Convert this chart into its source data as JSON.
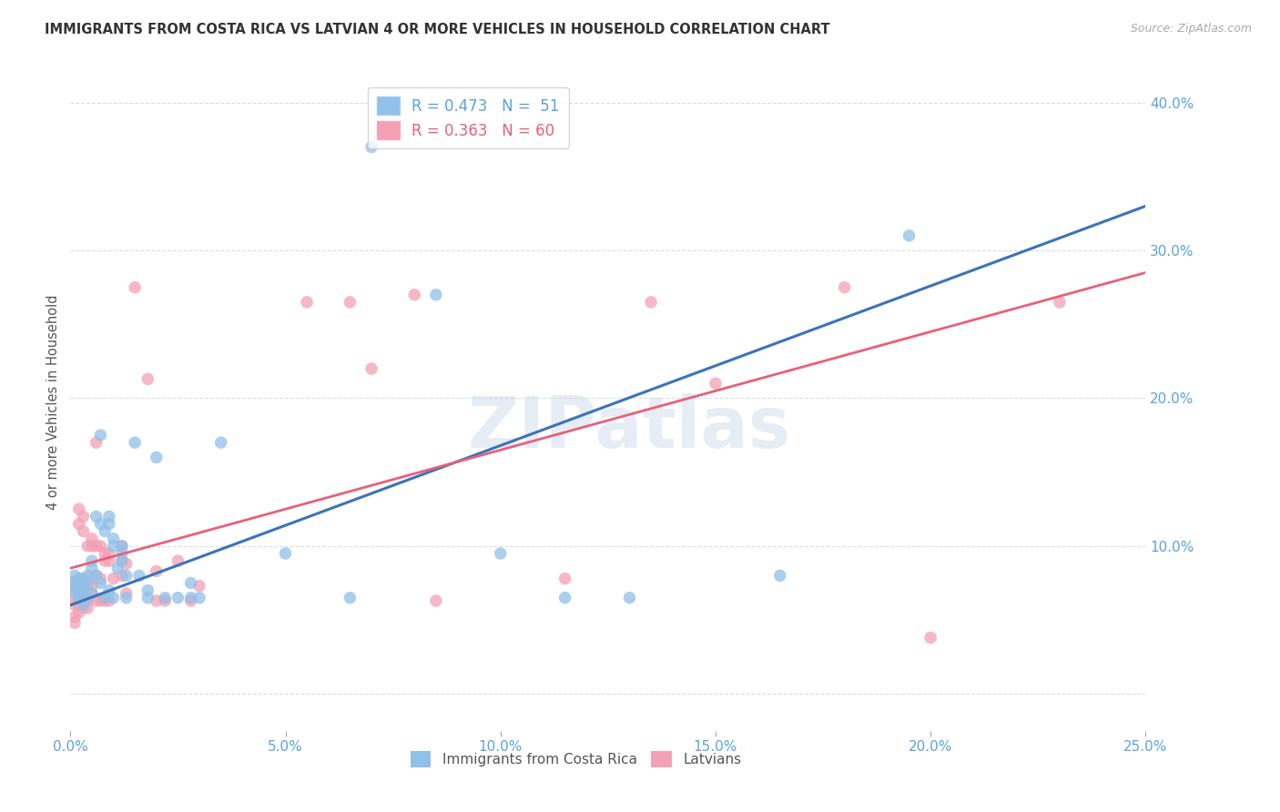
{
  "title": "IMMIGRANTS FROM COSTA RICA VS LATVIAN 4 OR MORE VEHICLES IN HOUSEHOLD CORRELATION CHART",
  "source": "Source: ZipAtlas.com",
  "ylabel": "4 or more Vehicles in Household",
  "watermark": "ZIPatlas",
  "xlim": [
    0.0,
    0.25
  ],
  "ylim": [
    -0.025,
    0.42
  ],
  "x_tick_vals": [
    0.0,
    0.05,
    0.1,
    0.15,
    0.2,
    0.25
  ],
  "x_tick_labels": [
    "0.0%",
    "5.0%",
    "10.0%",
    "15.0%",
    "20.0%",
    "25.0%"
  ],
  "y_tick_vals": [
    0.0,
    0.1,
    0.2,
    0.3,
    0.4
  ],
  "y_tick_labels": [
    "",
    "10.0%",
    "20.0%",
    "30.0%",
    "40.0%"
  ],
  "blue_scatter": [
    [
      0.001,
      0.072
    ],
    [
      0.001,
      0.076
    ],
    [
      0.001,
      0.08
    ],
    [
      0.001,
      0.068
    ],
    [
      0.002,
      0.065
    ],
    [
      0.002,
      0.07
    ],
    [
      0.002,
      0.074
    ],
    [
      0.002,
      0.078
    ],
    [
      0.003,
      0.06
    ],
    [
      0.003,
      0.067
    ],
    [
      0.003,
      0.072
    ],
    [
      0.003,
      0.077
    ],
    [
      0.004,
      0.065
    ],
    [
      0.004,
      0.075
    ],
    [
      0.004,
      0.08
    ],
    [
      0.005,
      0.068
    ],
    [
      0.005,
      0.085
    ],
    [
      0.005,
      0.09
    ],
    [
      0.006,
      0.08
    ],
    [
      0.006,
      0.12
    ],
    [
      0.007,
      0.075
    ],
    [
      0.007,
      0.115
    ],
    [
      0.007,
      0.175
    ],
    [
      0.008,
      0.065
    ],
    [
      0.008,
      0.11
    ],
    [
      0.009,
      0.07
    ],
    [
      0.009,
      0.115
    ],
    [
      0.009,
      0.12
    ],
    [
      0.01,
      0.065
    ],
    [
      0.01,
      0.1
    ],
    [
      0.01,
      0.105
    ],
    [
      0.011,
      0.085
    ],
    [
      0.012,
      0.09
    ],
    [
      0.012,
      0.095
    ],
    [
      0.012,
      0.1
    ],
    [
      0.013,
      0.065
    ],
    [
      0.013,
      0.08
    ],
    [
      0.015,
      0.17
    ],
    [
      0.016,
      0.08
    ],
    [
      0.018,
      0.065
    ],
    [
      0.018,
      0.07
    ],
    [
      0.02,
      0.16
    ],
    [
      0.022,
      0.065
    ],
    [
      0.025,
      0.065
    ],
    [
      0.028,
      0.065
    ],
    [
      0.028,
      0.075
    ],
    [
      0.03,
      0.065
    ],
    [
      0.035,
      0.17
    ],
    [
      0.05,
      0.095
    ],
    [
      0.065,
      0.065
    ],
    [
      0.07,
      0.37
    ],
    [
      0.085,
      0.27
    ],
    [
      0.1,
      0.095
    ],
    [
      0.115,
      0.065
    ],
    [
      0.13,
      0.065
    ],
    [
      0.165,
      0.08
    ],
    [
      0.195,
      0.31
    ]
  ],
  "pink_scatter": [
    [
      0.001,
      0.06
    ],
    [
      0.001,
      0.065
    ],
    [
      0.001,
      0.07
    ],
    [
      0.001,
      0.075
    ],
    [
      0.001,
      0.048
    ],
    [
      0.001,
      0.052
    ],
    [
      0.002,
      0.055
    ],
    [
      0.002,
      0.06
    ],
    [
      0.002,
      0.068
    ],
    [
      0.002,
      0.072
    ],
    [
      0.002,
      0.115
    ],
    [
      0.002,
      0.125
    ],
    [
      0.003,
      0.058
    ],
    [
      0.003,
      0.063
    ],
    [
      0.003,
      0.068
    ],
    [
      0.003,
      0.073
    ],
    [
      0.003,
      0.078
    ],
    [
      0.003,
      0.11
    ],
    [
      0.003,
      0.12
    ],
    [
      0.004,
      0.058
    ],
    [
      0.004,
      0.063
    ],
    [
      0.004,
      0.078
    ],
    [
      0.004,
      0.1
    ],
    [
      0.005,
      0.068
    ],
    [
      0.005,
      0.073
    ],
    [
      0.005,
      0.1
    ],
    [
      0.005,
      0.105
    ],
    [
      0.006,
      0.063
    ],
    [
      0.006,
      0.08
    ],
    [
      0.006,
      0.1
    ],
    [
      0.006,
      0.17
    ],
    [
      0.007,
      0.063
    ],
    [
      0.007,
      0.078
    ],
    [
      0.007,
      0.1
    ],
    [
      0.008,
      0.063
    ],
    [
      0.008,
      0.09
    ],
    [
      0.008,
      0.095
    ],
    [
      0.009,
      0.063
    ],
    [
      0.009,
      0.09
    ],
    [
      0.009,
      0.095
    ],
    [
      0.01,
      0.078
    ],
    [
      0.012,
      0.08
    ],
    [
      0.012,
      0.09
    ],
    [
      0.012,
      0.1
    ],
    [
      0.013,
      0.068
    ],
    [
      0.013,
      0.088
    ],
    [
      0.015,
      0.275
    ],
    [
      0.018,
      0.213
    ],
    [
      0.02,
      0.063
    ],
    [
      0.02,
      0.083
    ],
    [
      0.022,
      0.063
    ],
    [
      0.025,
      0.09
    ],
    [
      0.028,
      0.063
    ],
    [
      0.03,
      0.073
    ],
    [
      0.055,
      0.265
    ],
    [
      0.065,
      0.265
    ],
    [
      0.07,
      0.22
    ],
    [
      0.08,
      0.27
    ],
    [
      0.085,
      0.063
    ],
    [
      0.115,
      0.078
    ],
    [
      0.135,
      0.265
    ],
    [
      0.15,
      0.21
    ],
    [
      0.18,
      0.275
    ],
    [
      0.2,
      0.038
    ],
    [
      0.23,
      0.265
    ]
  ],
  "blue_line_x": [
    0.0,
    0.25
  ],
  "blue_line_y": [
    0.06,
    0.33
  ],
  "pink_line_x": [
    0.0,
    0.25
  ],
  "pink_line_y": [
    0.085,
    0.285
  ],
  "scatter_color_blue": "#91c0e8",
  "scatter_color_pink": "#f4a0b5",
  "line_color_blue": "#3a74b8",
  "line_color_pink": "#e8607a",
  "tick_label_color": "#5ba3d9",
  "background_color": "#ffffff",
  "grid_color": "#d5d5d5",
  "ylabel_color": "#555555",
  "title_color": "#333333",
  "source_color": "#aaaaaa"
}
